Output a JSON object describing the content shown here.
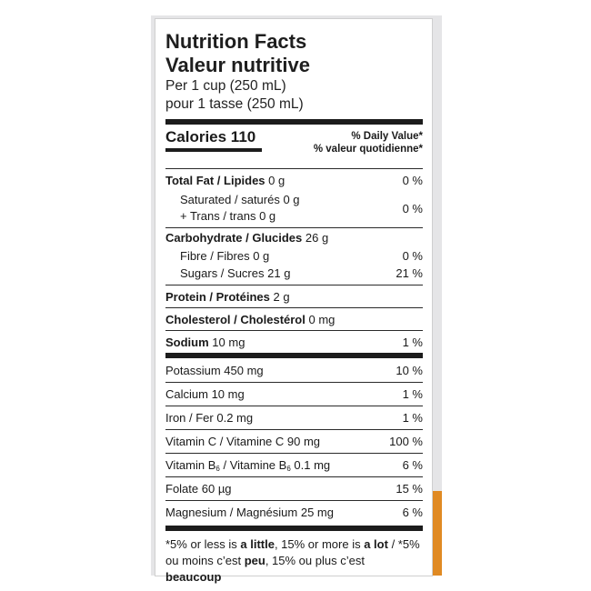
{
  "title_en": "Nutrition Facts",
  "title_fr": "Valeur nutritive",
  "serving_en": "Per 1 cup (250 mL)",
  "serving_fr": "pour 1 tasse (250 mL)",
  "calories_label": "Calories 110",
  "dv_en": "% Daily Value*",
  "dv_fr": "% valeur quotidienne*",
  "fat": {
    "label": "Total Fat / Lipides",
    "amount": "0 g",
    "pct": "0 %"
  },
  "sat_trans": {
    "sat_label": "Saturated / saturés",
    "sat_amount": "0 g",
    "trans_label": "+ Trans / trans",
    "trans_amount": "0 g",
    "pct": "0 %"
  },
  "carb": {
    "label": "Carbohydrate / Glucides",
    "amount": "26 g"
  },
  "fibre": {
    "label": "Fibre / Fibres",
    "amount": "0 g",
    "pct": "0 %"
  },
  "sugars": {
    "label": "Sugars / Sucres",
    "amount": "21 g",
    "pct": "21 %"
  },
  "protein": {
    "label": "Protein / Protéines",
    "amount": "2 g"
  },
  "cholesterol": {
    "label": "Cholesterol / Cholestérol",
    "amount": "0 mg"
  },
  "sodium": {
    "label": "Sodium",
    "amount": "10 mg",
    "pct": "1 %"
  },
  "minerals": [
    {
      "label": "Potassium 450 mg",
      "pct": "10 %"
    },
    {
      "label": "Calcium 10 mg",
      "pct": "1 %"
    },
    {
      "label": "Iron / Fer 0.2 mg",
      "pct": "1 %"
    },
    {
      "label": "Vitamin C / Vitamine C 90 mg",
      "pct": "100 %"
    }
  ],
  "b6": {
    "pre": "Vitamin B",
    "sub": "6",
    "mid": " / Vitamine B",
    "post": " 0.1 mg",
    "pct": "6 %"
  },
  "minerals2": [
    {
      "label": "Folate 60 µg",
      "pct": "15 %"
    },
    {
      "label": "Magnesium / Magnésium 25 mg",
      "pct": "6 %"
    }
  ],
  "footnote": {
    "p1": "*5% or less is ",
    "b1": "a little",
    "p2": ", 15% or more is ",
    "b2": "a lot",
    "p3": " / *5% ou moins c’est ",
    "b3": "peu",
    "p4": ", 15% ou plus c’est ",
    "b4": "beaucoup"
  }
}
